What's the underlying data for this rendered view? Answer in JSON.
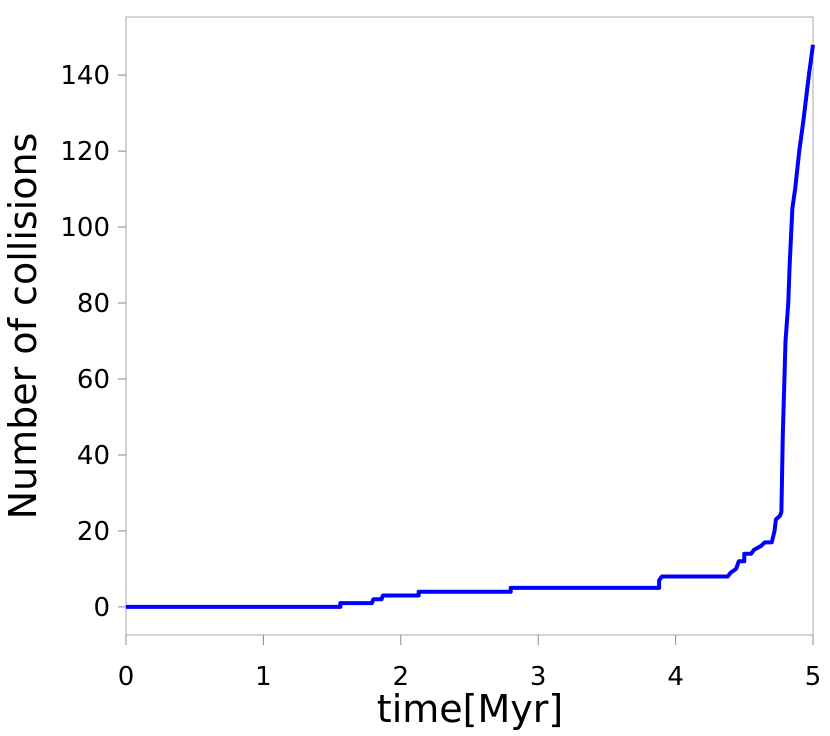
{
  "chart_data": {
    "type": "line",
    "xlabel": "time[Myr]",
    "ylabel": "Number of collisions",
    "color": "#0000ff",
    "x": [
      0,
      1.56,
      1.56,
      1.79,
      1.8,
      1.86,
      1.87,
      2.13,
      2.13,
      2.8,
      2.8,
      3.88,
      3.88,
      3.9,
      4.38,
      4.4,
      4.44,
      4.46,
      4.5,
      4.5,
      4.55,
      4.57,
      4.62,
      4.65,
      4.7,
      4.72,
      4.73,
      4.76,
      4.77,
      4.78,
      4.8,
      4.82,
      4.83,
      4.85,
      4.87,
      4.9,
      4.93,
      4.97,
      5.0
    ],
    "values": [
      0,
      0,
      1,
      1,
      2,
      2,
      3,
      3,
      4,
      4,
      5,
      5,
      7,
      8,
      8,
      9,
      10,
      12,
      12,
      14,
      14,
      15,
      16,
      17,
      17,
      20,
      23,
      24,
      25,
      45,
      70,
      80,
      90,
      105,
      110,
      120,
      128,
      140,
      148
    ],
    "xlim": [
      0,
      5
    ],
    "xticks": [
      0,
      1,
      2,
      3,
      4,
      5
    ],
    "ylim": [
      -7.4,
      155.3
    ],
    "yticks": [
      0,
      20,
      40,
      60,
      80,
      100,
      120,
      140
    ]
  }
}
